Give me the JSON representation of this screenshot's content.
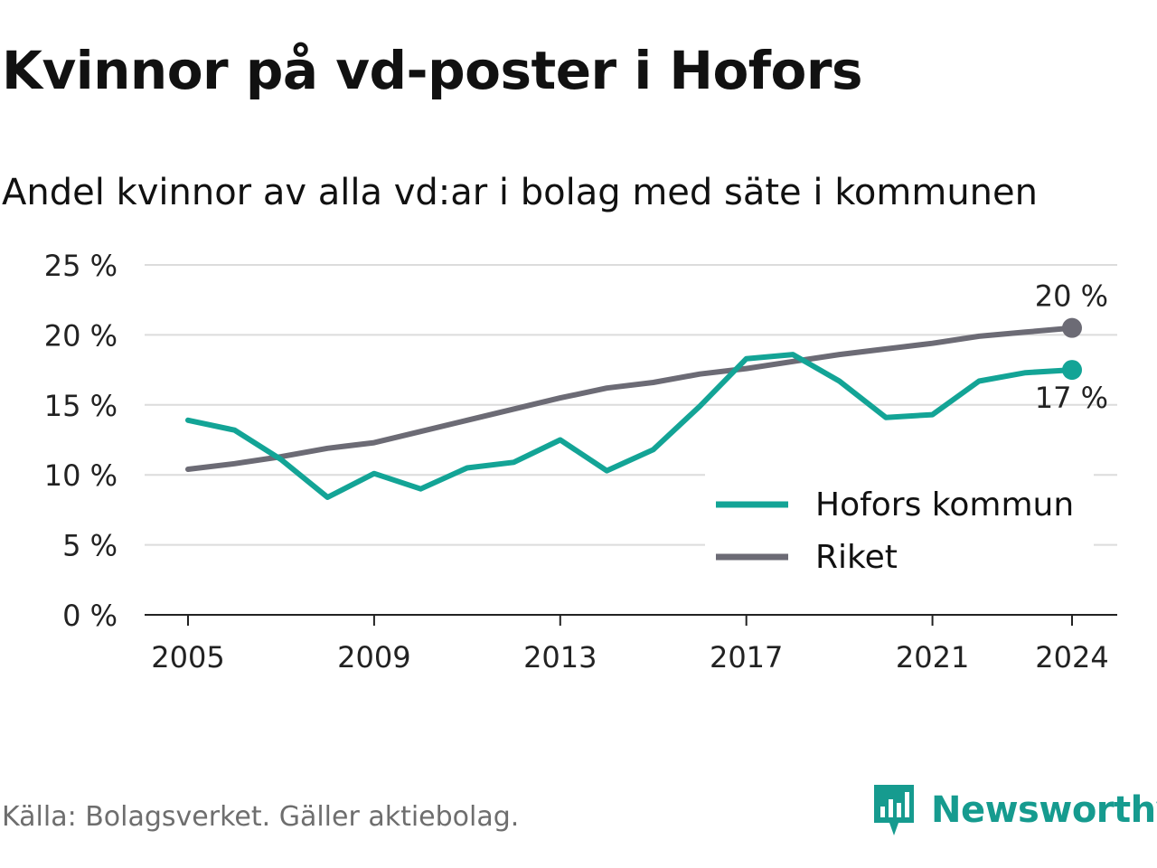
{
  "title": "Kvinnor på vd-poster i Hofors",
  "subtitle": "Andel kvinnor av alla vd:ar i bolag med säte i kommunen",
  "source": "Källa: Bolagsverket. Gäller aktiebolag.",
  "brand": {
    "name": "Newsworthy",
    "icon": "newsworthy-logo-icon",
    "color": "#169b8f"
  },
  "chart_data": {
    "type": "line",
    "x": [
      2005,
      2006,
      2007,
      2008,
      2009,
      2010,
      2011,
      2012,
      2013,
      2014,
      2015,
      2016,
      2017,
      2018,
      2019,
      2020,
      2021,
      2022,
      2023,
      2024
    ],
    "x_ticks": [
      "2005",
      "2009",
      "2013",
      "2017",
      "2021",
      "2024"
    ],
    "y_ticks": [
      "0 %",
      "5 %",
      "10 %",
      "15 %",
      "20 %",
      "25 %"
    ],
    "ylim": [
      0,
      25
    ],
    "grid": true,
    "legend_position": "bottom-right",
    "series": [
      {
        "name": "Hofors kommun",
        "color": "#13a496",
        "values": [
          13.9,
          13.2,
          11.1,
          8.4,
          10.1,
          9.0,
          10.5,
          10.9,
          12.5,
          10.3,
          11.8,
          14.9,
          18.3,
          18.6,
          16.7,
          14.1,
          14.3,
          16.7,
          17.3,
          17.5
        ],
        "end_label": "17 %"
      },
      {
        "name": "Riket",
        "color": "#6c6b75",
        "values": [
          10.4,
          10.8,
          11.3,
          11.9,
          12.3,
          13.1,
          13.9,
          14.7,
          15.5,
          16.2,
          16.6,
          17.2,
          17.6,
          18.1,
          18.6,
          19.0,
          19.4,
          19.9,
          20.2,
          20.5
        ],
        "end_label": "20 %"
      }
    ]
  }
}
